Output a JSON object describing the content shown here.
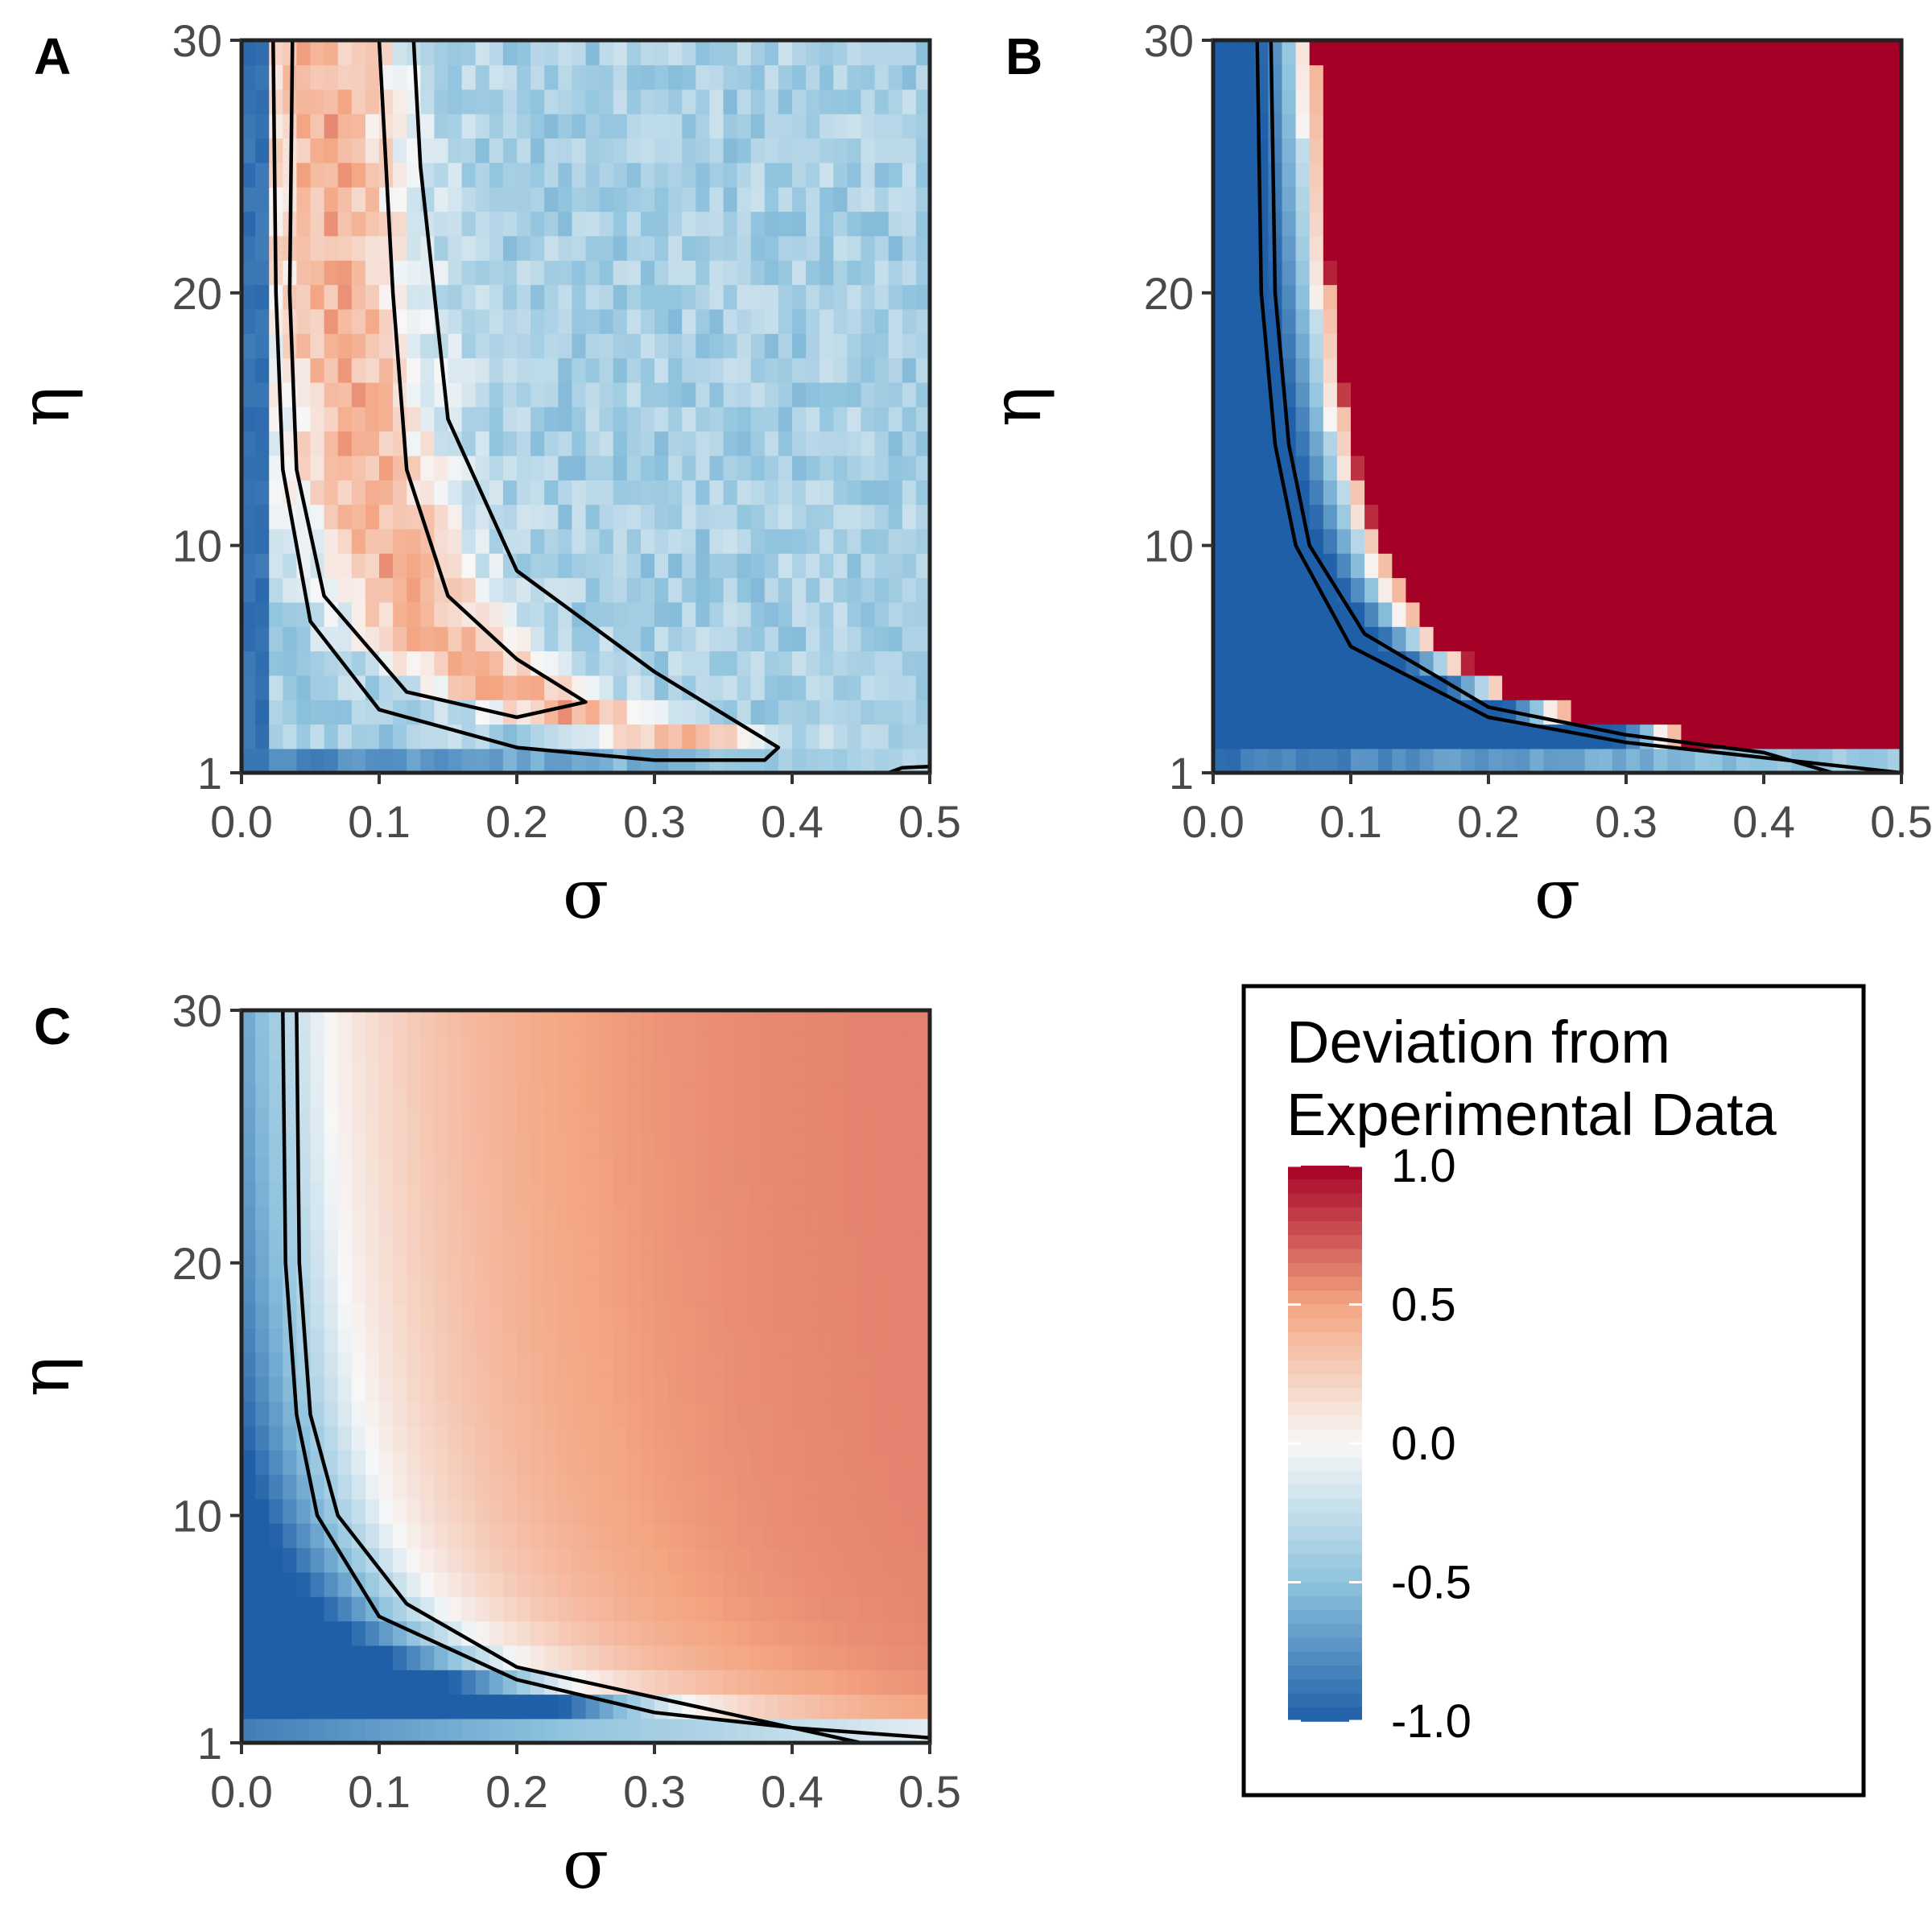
{
  "chart_data": [
    {
      "panel": "A",
      "type": "heatmap",
      "xlabel": "σ",
      "ylabel": "η",
      "xlim": [
        0,
        0.5
      ],
      "ylim": [
        1,
        30
      ],
      "x_ticks": [
        "0.0",
        "0.1",
        "0.2",
        "0.3",
        "0.4",
        "0.5"
      ],
      "y_ticks": [
        "1",
        "10",
        "20",
        "30"
      ],
      "pattern": "ridge of positive deviation (~+0.4) near the contour lines, negative (~-0.4) elsewhere, strongly negative for small η and small σ, noisy",
      "contours": [
        [
          [
            0.023,
            30
          ],
          [
            0.025,
            20
          ],
          [
            0.03,
            13
          ],
          [
            0.05,
            7
          ],
          [
            0.1,
            3.5
          ],
          [
            0.2,
            2.0
          ],
          [
            0.3,
            1.5
          ],
          [
            0.38,
            1.5
          ],
          [
            0.39,
            2.0
          ],
          [
            0.36,
            3
          ],
          [
            0.3,
            5
          ],
          [
            0.2,
            9
          ],
          [
            0.15,
            15
          ],
          [
            0.13,
            25
          ],
          [
            0.125,
            30
          ]
        ],
        [
          [
            0.037,
            30
          ],
          [
            0.035,
            20
          ],
          [
            0.04,
            13
          ],
          [
            0.06,
            8
          ],
          [
            0.12,
            4.2
          ],
          [
            0.2,
            3.2
          ],
          [
            0.25,
            3.8
          ],
          [
            0.2,
            5.5
          ],
          [
            0.15,
            8
          ],
          [
            0.12,
            13
          ],
          [
            0.11,
            20
          ],
          [
            0.1,
            30
          ]
        ],
        [
          [
            0.47,
            1.0
          ],
          [
            0.48,
            1.2
          ],
          [
            0.5,
            1.25
          ]
        ]
      ]
    },
    {
      "panel": "B",
      "type": "heatmap",
      "xlabel": "σ",
      "ylabel": "η",
      "xlim": [
        0,
        0.5
      ],
      "ylim": [
        1,
        30
      ],
      "x_ticks": [
        "0.0",
        "0.1",
        "0.2",
        "0.3",
        "0.4",
        "0.5"
      ],
      "y_ticks": [
        "1",
        "10",
        "20",
        "30"
      ],
      "pattern": "strongly negative (-1.0) for small σ and small η, saturated positive (+1.0) for larger σ and η, transition band along the contours",
      "contours": [
        [
          [
            0.032,
            30
          ],
          [
            0.035,
            20
          ],
          [
            0.045,
            14
          ],
          [
            0.06,
            10
          ],
          [
            0.1,
            6
          ],
          [
            0.2,
            3.2
          ],
          [
            0.3,
            2.2
          ],
          [
            0.4,
            1.6
          ],
          [
            0.5,
            1.0
          ]
        ],
        [
          [
            0.042,
            30
          ],
          [
            0.045,
            20
          ],
          [
            0.055,
            14
          ],
          [
            0.07,
            10
          ],
          [
            0.11,
            6.5
          ],
          [
            0.2,
            3.6
          ],
          [
            0.3,
            2.5
          ],
          [
            0.4,
            1.8
          ],
          [
            0.45,
            1.0
          ]
        ]
      ]
    },
    {
      "panel": "C",
      "type": "heatmap",
      "xlabel": "σ",
      "ylabel": "η",
      "xlim": [
        0,
        0.5
      ],
      "ylim": [
        1,
        30
      ],
      "x_ticks": [
        "0.0",
        "0.1",
        "0.2",
        "0.3",
        "0.4",
        "0.5"
      ],
      "y_ticks": [
        "1",
        "10",
        "20",
        "30"
      ],
      "pattern": "smooth: negative (-1.0) for small σ and small η, rising to about +0.6 for larger σ and η",
      "contours": [
        [
          [
            0.03,
            30
          ],
          [
            0.032,
            20
          ],
          [
            0.04,
            14
          ],
          [
            0.055,
            10
          ],
          [
            0.1,
            6
          ],
          [
            0.2,
            3.5
          ],
          [
            0.3,
            2.2
          ],
          [
            0.4,
            1.6
          ],
          [
            0.5,
            1.2
          ]
        ],
        [
          [
            0.04,
            30
          ],
          [
            0.042,
            20
          ],
          [
            0.05,
            14
          ],
          [
            0.07,
            10
          ],
          [
            0.12,
            6.5
          ],
          [
            0.2,
            4.0
          ],
          [
            0.3,
            2.8
          ],
          [
            0.4,
            1.6
          ],
          [
            0.45,
            1.0
          ]
        ]
      ]
    }
  ],
  "legend": {
    "title_line1": "Deviation from",
    "title_line2": "Experimental Data",
    "ticks": [
      "1.0",
      "0.5",
      "0.0",
      "-0.5",
      "-1.0"
    ],
    "range": [
      -1,
      1
    ],
    "colors": {
      "neg_full": "#1f5fa8",
      "neg_mid": "#8fc3de",
      "zero": "#f7f7f7",
      "pos_mid": "#f4a582",
      "pos_full": "#a50026"
    }
  }
}
